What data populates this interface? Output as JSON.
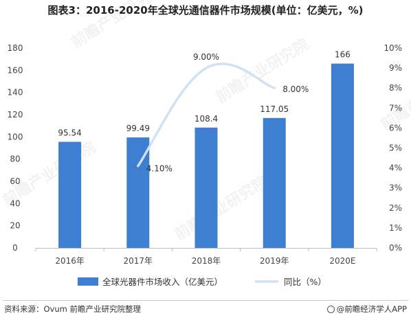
{
  "header": {
    "title": "图表3：2016-2020年全球光通信器件市场规模(单位：亿美元，%)"
  },
  "chart_data": {
    "type": "bar",
    "categories": [
      "2016年",
      "2017年",
      "2018年",
      "2019年",
      "2020E"
    ],
    "series": [
      {
        "name": "全球光器件市场收入（亿美元）",
        "type": "bar",
        "axis": "left",
        "color": "#3e7fd1",
        "values": [
          95.54,
          99.49,
          108.4,
          117.05,
          166
        ],
        "labels": [
          "95.54",
          "99.49",
          "108.4",
          "117.05",
          "166"
        ]
      },
      {
        "name": "同比（%）",
        "type": "line",
        "axis": "right",
        "color": "#cfe2f3",
        "values": [
          null,
          4.1,
          9.0,
          8.0,
          null
        ],
        "labels": [
          null,
          "4.10%",
          "9.00%",
          "8.00%",
          null
        ]
      }
    ],
    "y_left": {
      "min": 0,
      "max": 180,
      "step": 20,
      "ticks": [
        "0",
        "20",
        "40",
        "60",
        "80",
        "100",
        "120",
        "140",
        "160",
        "180"
      ]
    },
    "y_right": {
      "min": 0,
      "max": 10,
      "step": 1,
      "ticks": [
        "0%",
        "1%",
        "2%",
        "3%",
        "4%",
        "5%",
        "6%",
        "7%",
        "8%",
        "9%",
        "10%"
      ]
    },
    "legend_position": "bottom",
    "grid": false
  },
  "watermark": {
    "text": "前瞻产业研究院"
  },
  "footer": {
    "source": "资料来源：Ovum 前瞻产业研究院整理",
    "credit": "@前瞻经济学人APP"
  }
}
